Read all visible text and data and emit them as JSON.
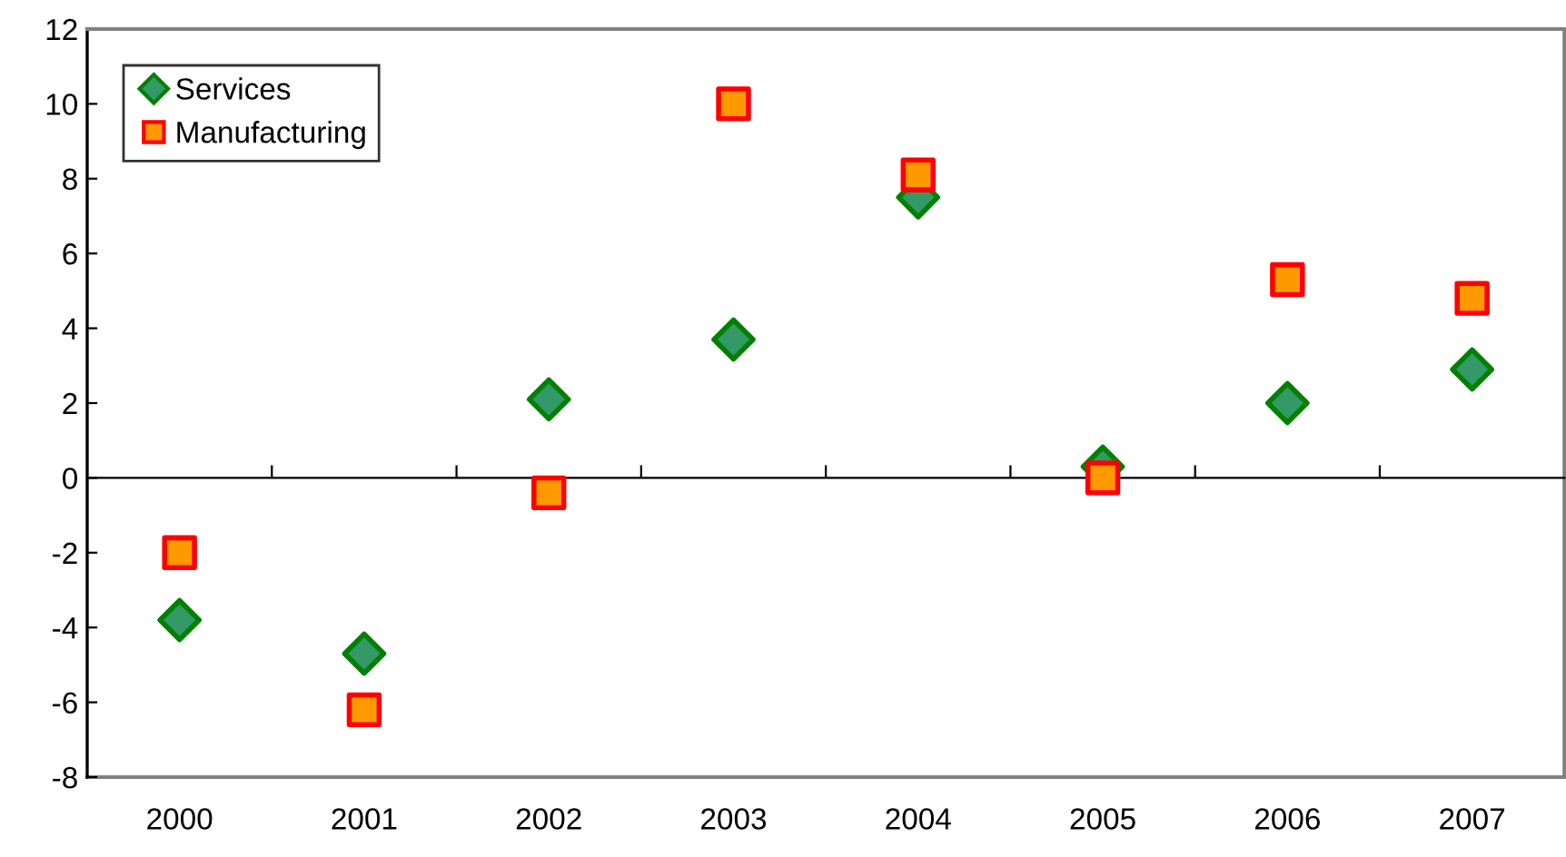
{
  "chart_data": {
    "type": "scatter",
    "categories": [
      "2000",
      "2001",
      "2002",
      "2003",
      "2004",
      "2005",
      "2006",
      "2007"
    ],
    "series": [
      {
        "name": "Services",
        "color": "#339966",
        "marker": "diamond",
        "values": [
          -3.8,
          -4.7,
          2.1,
          3.7,
          7.5,
          0.3,
          2.0,
          2.9
        ]
      },
      {
        "name": "Manufacturing",
        "color": "#ff9900",
        "marker": "square",
        "values": [
          -2.0,
          -6.2,
          -0.4,
          10.0,
          8.1,
          0.0,
          5.3,
          4.8
        ]
      }
    ],
    "ylim": [
      -8,
      12
    ],
    "yticks": [
      -8,
      -6,
      -4,
      -2,
      0,
      2,
      4,
      6,
      8,
      10,
      12
    ],
    "legend": "top left"
  }
}
